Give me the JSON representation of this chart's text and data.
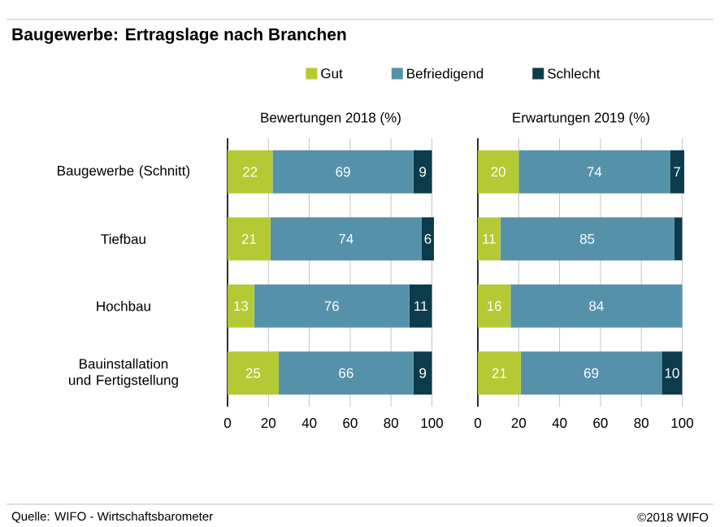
{
  "chart_data": [
    {
      "type": "bar",
      "orientation": "horizontal",
      "stacked": true,
      "title": "Baugewerbe: Ertragslage nach Branchen",
      "subtitle": "Bewertungen 2018 (%)",
      "categories": [
        "Baugewerbe (Schnitt)",
        "Tiefbau",
        "Hochbau",
        "Bauinstallation und Fertigstellung"
      ],
      "series": [
        {
          "name": "Gut",
          "color": "#b5c934",
          "values": [
            22,
            21,
            13,
            25
          ],
          "value_labels": [
            "22",
            "21",
            "13",
            "25"
          ]
        },
        {
          "name": "Befriedigend",
          "color": "#5592aa",
          "values": [
            69,
            74,
            76,
            66
          ],
          "value_labels": [
            "69",
            "74",
            "76",
            "66"
          ]
        },
        {
          "name": "Schlecht",
          "color": "#0c3c4b",
          "values": [
            9,
            6,
            11,
            9
          ],
          "value_labels": [
            "9",
            "6",
            "11",
            "9"
          ]
        }
      ],
      "xlim": [
        0,
        101
      ],
      "xticks": [
        0,
        20,
        40,
        60,
        80,
        100
      ],
      "grid": "x",
      "legend": "top",
      "annotations": [
        "Quelle: WIFO - Wirtschaftsbarometer"
      ]
    },
    {
      "type": "bar",
      "orientation": "horizontal",
      "stacked": true,
      "subtitle": "Erwartungen 2019 (%)",
      "categories": [
        null,
        null,
        null,
        null
      ],
      "series": [
        {
          "color": "#b5c934",
          "values": [
            20,
            11,
            16,
            21
          ],
          "value_labels": [
            "20",
            "11",
            "16",
            "21"
          ]
        },
        {
          "color": "#5592aa",
          "values": [
            74,
            85,
            84,
            69
          ],
          "value_labels": [
            "74",
            "85",
            "84",
            "69"
          ]
        },
        {
          "color": "#0c3c4b",
          "values": [
            7,
            4,
            0,
            10
          ],
          "value_labels": [
            "7",
            null,
            null,
            "10"
          ]
        }
      ],
      "xlim": [
        0,
        101
      ],
      "xticks": [
        0,
        20,
        40,
        60,
        80,
        100
      ],
      "grid": "x",
      "tick_labels": "x",
      "annotations": [
        "©2018 WIFO"
      ]
    }
  ]
}
